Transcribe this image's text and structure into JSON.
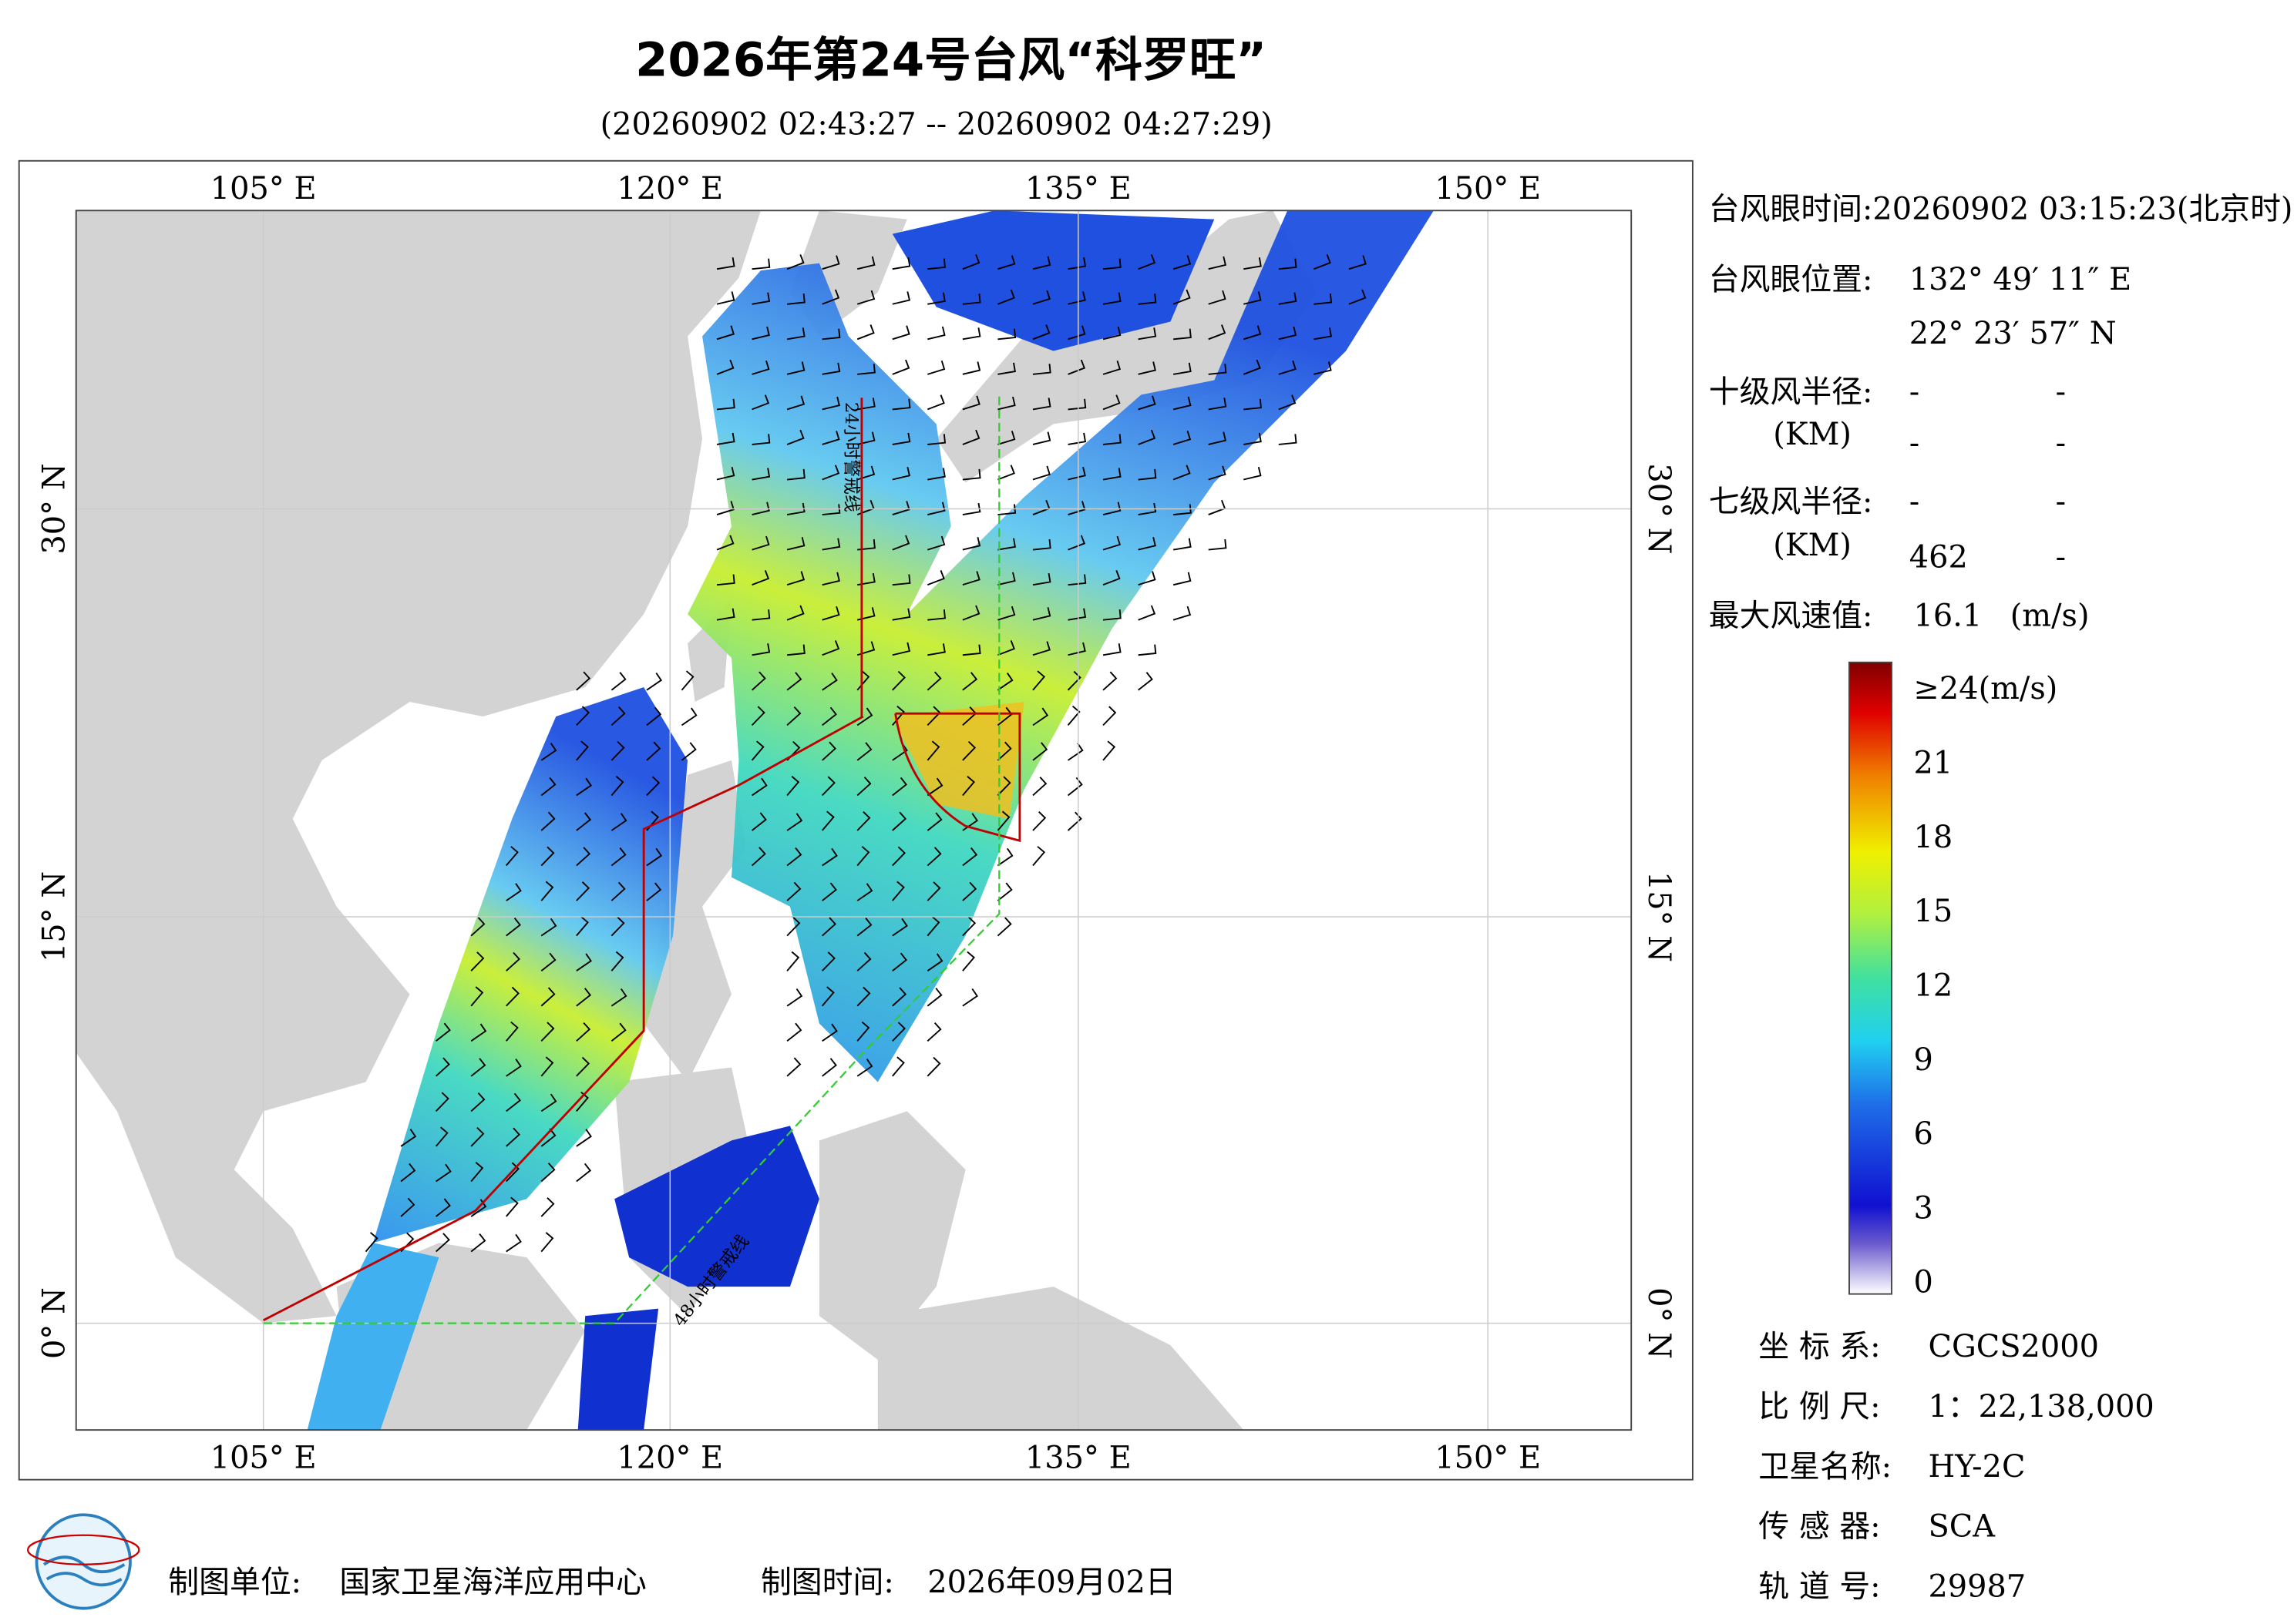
{
  "header": {
    "title": "2026年第24号台风“科罗旺”",
    "subtitle": "(20260902 02:43:27 -- 20260902 04:27:29)"
  },
  "map": {
    "top_lon_labels": [
      "105° E",
      "120° E",
      "135° E",
      "150° E"
    ],
    "bottom_lon_labels": [
      "105° E",
      "120° E",
      "135° E",
      "150° E"
    ],
    "left_lat_labels": [
      "30° N",
      "15° N",
      "0° N"
    ],
    "right_lat_labels": [
      "30° N",
      "15° N",
      "0° N"
    ],
    "line_labels": [
      "24小时警戒线",
      "48小时警戒线"
    ]
  },
  "info": {
    "eye_time": "台风眼时间:20260902 03:15:23(北京时)",
    "eye_pos_label": "台风眼位置:",
    "eye_lon": "132° 49′ 11″ E",
    "eye_lat": "22° 23′ 57″ N",
    "r10_label": "十级风半径:",
    "r10_a": "-",
    "r10_b": "-",
    "r10_unit": "(KM)",
    "r10_c": "-",
    "r10_d": "-",
    "r7_label": "七级风半径:",
    "r7_a": "-",
    "r7_b": "-",
    "r7_unit": "(KM)",
    "r7_c": "462",
    "r7_d": "-",
    "max_label": "最大风速值:",
    "max_value": "16.1",
    "max_unit": "(m/s)"
  },
  "colorbar": {
    "labels": [
      "≥24(m/s)",
      "21",
      "18",
      "15",
      "12",
      "9",
      "6",
      "3",
      "0"
    ]
  },
  "meta": {
    "rows": [
      [
        "坐 标 系:",
        "CGCS2000"
      ],
      [
        "比 例 尺:",
        "1：22,138,000"
      ],
      [
        "卫星名称:",
        "HY-2C"
      ],
      [
        "传 感 器:",
        "SCA"
      ],
      [
        "轨 道 号:",
        "29987"
      ]
    ]
  },
  "footer": {
    "unit_label": "制图单位:",
    "unit": "国家卫星海洋应用中心",
    "time_label": "制图时间:",
    "time": "2026年09月02日"
  }
}
